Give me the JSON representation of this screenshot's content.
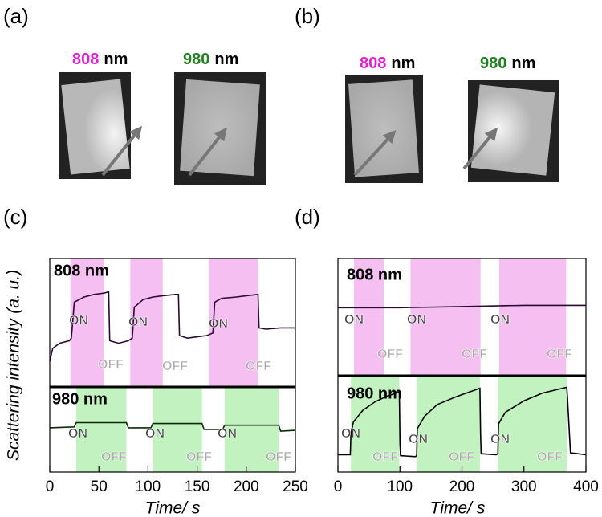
{
  "panels": [
    "(a)",
    "(b)",
    "(c)",
    "(d)"
  ],
  "images": [
    {
      "labels": [
        {
          "wavelength": "808",
          "unit": "nm",
          "color": "#e020d0"
        },
        {
          "wavelength": "980",
          "unit": "nm",
          "color": "#208020"
        }
      ]
    },
    {
      "labels": [
        {
          "wavelength": "808",
          "unit": "nm",
          "color": "#e020d0"
        },
        {
          "wavelength": "980",
          "unit": "nm",
          "color": "#208020"
        }
      ]
    }
  ],
  "ylabel": "Scattering intensity (a. u.)",
  "chart_data": [
    {
      "type": "line",
      "label": "808 nm",
      "xlim": [
        0,
        250
      ],
      "ylim": [
        0,
        1
      ],
      "color": "#2a0a30",
      "shade_color": "#f6bff2",
      "shaded": [
        [
          21,
          55
        ],
        [
          82,
          115
        ],
        [
          162,
          212
        ]
      ],
      "annotations": [
        "ON",
        "ON",
        "ON",
        "OFF",
        "OFF",
        "OFF"
      ],
      "x": [
        0,
        3,
        10,
        20,
        22,
        25,
        35,
        45,
        55,
        60,
        61,
        70,
        80,
        84,
        86,
        95,
        105,
        115,
        128,
        131,
        132,
        140,
        150,
        160,
        166,
        168,
        175,
        190,
        200,
        212,
        213,
        220,
        235,
        250
      ],
      "values": [
        0.2,
        0.3,
        0.34,
        0.36,
        0.38,
        0.66,
        0.7,
        0.72,
        0.73,
        0.74,
        0.36,
        0.34,
        0.36,
        0.38,
        0.62,
        0.68,
        0.7,
        0.71,
        0.72,
        0.72,
        0.4,
        0.38,
        0.39,
        0.4,
        0.42,
        0.66,
        0.69,
        0.7,
        0.71,
        0.72,
        0.46,
        0.45,
        0.46,
        0.46
      ]
    },
    {
      "type": "line",
      "label": "980 nm",
      "xlabel": "Time/ s",
      "xlim": [
        0,
        250
      ],
      "xticks": [
        0,
        50,
        100,
        150,
        200,
        250
      ],
      "ylim": [
        0,
        1
      ],
      "color": "#0a2a0a",
      "shade_color": "#c2f2c0",
      "shaded": [
        [
          27,
          78
        ],
        [
          105,
          155
        ],
        [
          178,
          233
        ]
      ],
      "annotations": [
        "ON",
        "ON",
        "ON",
        "OFF",
        "OFF",
        "OFF"
      ],
      "x": [
        0,
        25,
        27,
        78,
        80,
        103,
        105,
        155,
        157,
        176,
        178,
        233,
        235,
        250
      ],
      "values": [
        0.52,
        0.53,
        0.58,
        0.58,
        0.52,
        0.52,
        0.57,
        0.57,
        0.5,
        0.5,
        0.55,
        0.55,
        0.48,
        0.49
      ]
    },
    {
      "type": "line",
      "label": "808 nm",
      "xlim": [
        0,
        400
      ],
      "ylim": [
        0,
        1
      ],
      "color": "#2a0a30",
      "shade_color": "#f6bff2",
      "shaded": [
        [
          26,
          74
        ],
        [
          117,
          230
        ],
        [
          260,
          368
        ]
      ],
      "annotations": [
        "ON",
        "ON",
        "ON",
        "OFF",
        "OFF",
        "OFF"
      ],
      "x": [
        0,
        100,
        200,
        300,
        400
      ],
      "values": [
        0.58,
        0.58,
        0.59,
        0.6,
        0.6
      ]
    },
    {
      "type": "line",
      "label": "980 nm",
      "xlabel": "Time/ s",
      "xlim": [
        0,
        400
      ],
      "xticks": [
        0,
        100,
        200,
        300,
        400
      ],
      "ylim": [
        0,
        1
      ],
      "color": "#000000",
      "shade_color": "#c2f2c0",
      "shaded": [
        [
          21,
          99
        ],
        [
          127,
          229
        ],
        [
          258,
          369
        ]
      ],
      "annotations": [
        "ON",
        "ON",
        "ON",
        "OFF",
        "OFF",
        "OFF"
      ],
      "x": [
        0,
        20,
        21,
        25,
        40,
        60,
        80,
        99,
        100,
        101,
        125,
        127,
        128,
        140,
        160,
        190,
        229,
        230,
        231,
        255,
        258,
        259,
        270,
        300,
        330,
        369,
        370,
        375,
        400
      ],
      "values": [
        0.18,
        0.18,
        0.4,
        0.52,
        0.64,
        0.73,
        0.79,
        0.83,
        0.3,
        0.17,
        0.16,
        0.17,
        0.45,
        0.58,
        0.7,
        0.78,
        0.87,
        0.4,
        0.19,
        0.18,
        0.19,
        0.5,
        0.62,
        0.74,
        0.82,
        0.88,
        0.8,
        0.2,
        0.18
      ]
    }
  ]
}
